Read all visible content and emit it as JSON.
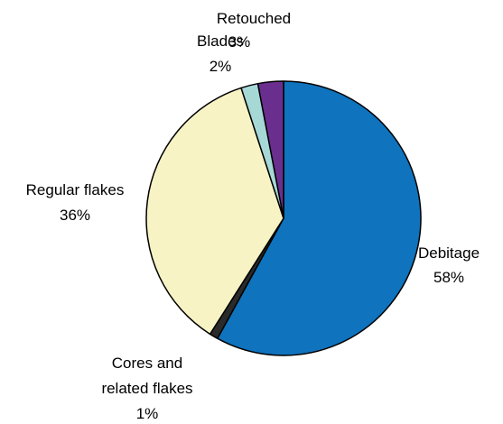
{
  "chart_data": {
    "type": "pie",
    "title": "",
    "start_angle_deg": 90,
    "direction": "clockwise",
    "legend": "none",
    "slices": [
      {
        "label": "Debitage",
        "value": 58,
        "pct_label": "58%",
        "color": "#0f73bd"
      },
      {
        "label_lines": [
          "Cores and",
          "related flakes"
        ],
        "value": 1,
        "pct_label": "1%",
        "color": "#2a2a2a"
      },
      {
        "label": "Regular flakes",
        "value": 36,
        "pct_label": "36%",
        "color": "#f7f3c5"
      },
      {
        "label": "Blades",
        "value": 2,
        "pct_label": "2%",
        "color": "#a6d8d6"
      },
      {
        "label": "Retouched",
        "value": 3,
        "pct_label": "3%",
        "color": "#6a2f8e"
      }
    ]
  }
}
